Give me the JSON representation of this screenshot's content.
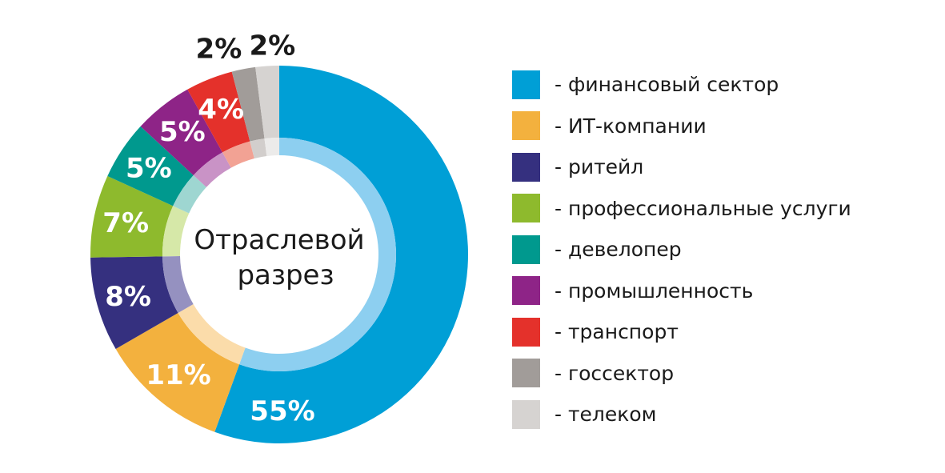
{
  "chart_data": {
    "type": "pie",
    "variant": "donut",
    "title": "",
    "center_label_lines": [
      "Отраслевой",
      "разрез"
    ],
    "start_angle_deg": 0,
    "direction": "clockwise",
    "legend_position": "right",
    "slices": [
      {
        "label": "- финансовый сектор",
        "value": 55,
        "value_label": "55%",
        "color": "#009fd6",
        "inner_color": "#8dcff0",
        "text_color": "#ffffff"
      },
      {
        "label": "- ИТ-компании",
        "value": 11,
        "value_label": "11%",
        "color": "#f3b13e",
        "inner_color": "#fbdcaa",
        "text_color": "#ffffff"
      },
      {
        "label": "- ритейл",
        "value": 8,
        "value_label": "8%",
        "color": "#35307f",
        "inner_color": "#9591c0",
        "text_color": "#ffffff"
      },
      {
        "label": "- профессиональные услуги",
        "value": 7,
        "value_label": "7%",
        "color": "#8eba2d",
        "inner_color": "#d6e8a8",
        "text_color": "#ffffff"
      },
      {
        "label": "- девелопер",
        "value": 5,
        "value_label": "5%",
        "color": "#00998e",
        "inner_color": "#9ed6d1",
        "text_color": "#ffffff"
      },
      {
        "label": "- промышленность",
        "value": 5,
        "value_label": "5%",
        "color": "#8e2487",
        "inner_color": "#c993c6",
        "text_color": "#ffffff"
      },
      {
        "label": "- транспорт",
        "value": 4,
        "value_label": "4%",
        "color": "#e4312b",
        "inner_color": "#f2a294",
        "text_color": "#ffffff"
      },
      {
        "label": "- госсектор",
        "value": 2,
        "value_label": "2%",
        "color": "#a19c99",
        "inner_color": "#d2cecc",
        "text_color": "#1a1a1a"
      },
      {
        "label": "- телеком",
        "value": 2,
        "value_label": "2%",
        "color": "#d6d3d1",
        "inner_color": "#ecebea",
        "text_color": "#1a1a1a"
      }
    ]
  }
}
